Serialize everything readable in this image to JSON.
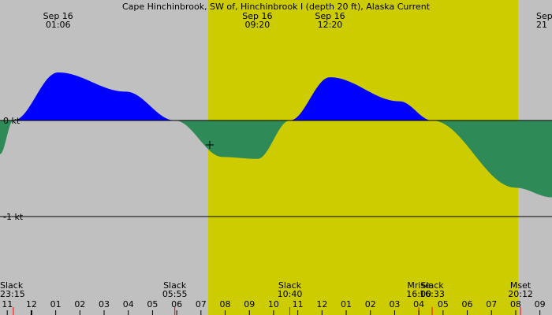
{
  "chart_data": {
    "type": "area",
    "title": "Cape Hinchinbrook, SW of, Hinchinbrook I (depth 20 ft), Alaska Current",
    "xlabel": "",
    "ylabel": "",
    "colors": {
      "background_night": "#c0c0c0",
      "background_day": "#cccc00",
      "flood": "#0000ff",
      "ebb": "#2e8b57",
      "axis": "#000000"
    },
    "y_ticks": [
      {
        "value": 0,
        "label": "0 kt"
      },
      {
        "value": -1,
        "label": "-1 kt"
      }
    ],
    "x_start_hour": 22.7,
    "x_end_hour": 45.5,
    "daylight": {
      "start_hour": 31.3,
      "end_hour": 44.1
    },
    "series": [
      {
        "x": [
          22.7,
          23.25,
          25.1,
          27.9,
          29.92,
          31.9,
          33.33,
          34.67,
          36.33,
          39.2,
          40.55,
          44.0,
          45.5
        ],
        "values": [
          -0.35,
          0.0,
          0.5,
          0.3,
          0.0,
          -0.38,
          -0.4,
          0.0,
          0.45,
          0.2,
          0.0,
          -0.7,
          -0.8
        ]
      }
    ],
    "peak_labels": [
      {
        "date": "Sep 16",
        "time": "01:06",
        "hour": 25.1
      },
      {
        "date": "Sep 16",
        "time": "09:20",
        "hour": 33.33
      },
      {
        "date": "Sep 16",
        "time": "12:20",
        "hour": 36.33
      },
      {
        "date": "Sep",
        "time": "21",
        "hour": 45.5
      }
    ],
    "events": [
      {
        "name": "Slack",
        "time": "23:15",
        "hour": 23.25
      },
      {
        "name": "Slack",
        "time": "05:55",
        "hour": 29.92
      },
      {
        "name": "Slack",
        "time": "10:40",
        "hour": 34.67
      },
      {
        "name": "Mrise",
        "time": "16:00",
        "hour": 40.0
      },
      {
        "name": "Slack",
        "time": "16:33",
        "hour": 40.55
      },
      {
        "name": "Mset",
        "time": "20:12",
        "hour": 44.2
      }
    ],
    "x_ticks": [
      {
        "hour": 23,
        "label": "11"
      },
      {
        "hour": 24,
        "label": "12"
      },
      {
        "hour": 25,
        "label": "01"
      },
      {
        "hour": 26,
        "label": "02"
      },
      {
        "hour": 27,
        "label": "03"
      },
      {
        "hour": 28,
        "label": "04"
      },
      {
        "hour": 29,
        "label": "05"
      },
      {
        "hour": 30,
        "label": "06"
      },
      {
        "hour": 31,
        "label": "07"
      },
      {
        "hour": 32,
        "label": "08"
      },
      {
        "hour": 33,
        "label": "09"
      },
      {
        "hour": 34,
        "label": "10"
      },
      {
        "hour": 35,
        "label": "11"
      },
      {
        "hour": 36,
        "label": "12"
      },
      {
        "hour": 37,
        "label": "01"
      },
      {
        "hour": 38,
        "label": "02"
      },
      {
        "hour": 39,
        "label": "03"
      },
      {
        "hour": 40,
        "label": "04"
      },
      {
        "hour": 41,
        "label": "05"
      },
      {
        "hour": 42,
        "label": "06"
      },
      {
        "hour": 43,
        "label": "07"
      },
      {
        "hour": 44,
        "label": "08"
      },
      {
        "hour": 45,
        "label": "09"
      }
    ]
  }
}
